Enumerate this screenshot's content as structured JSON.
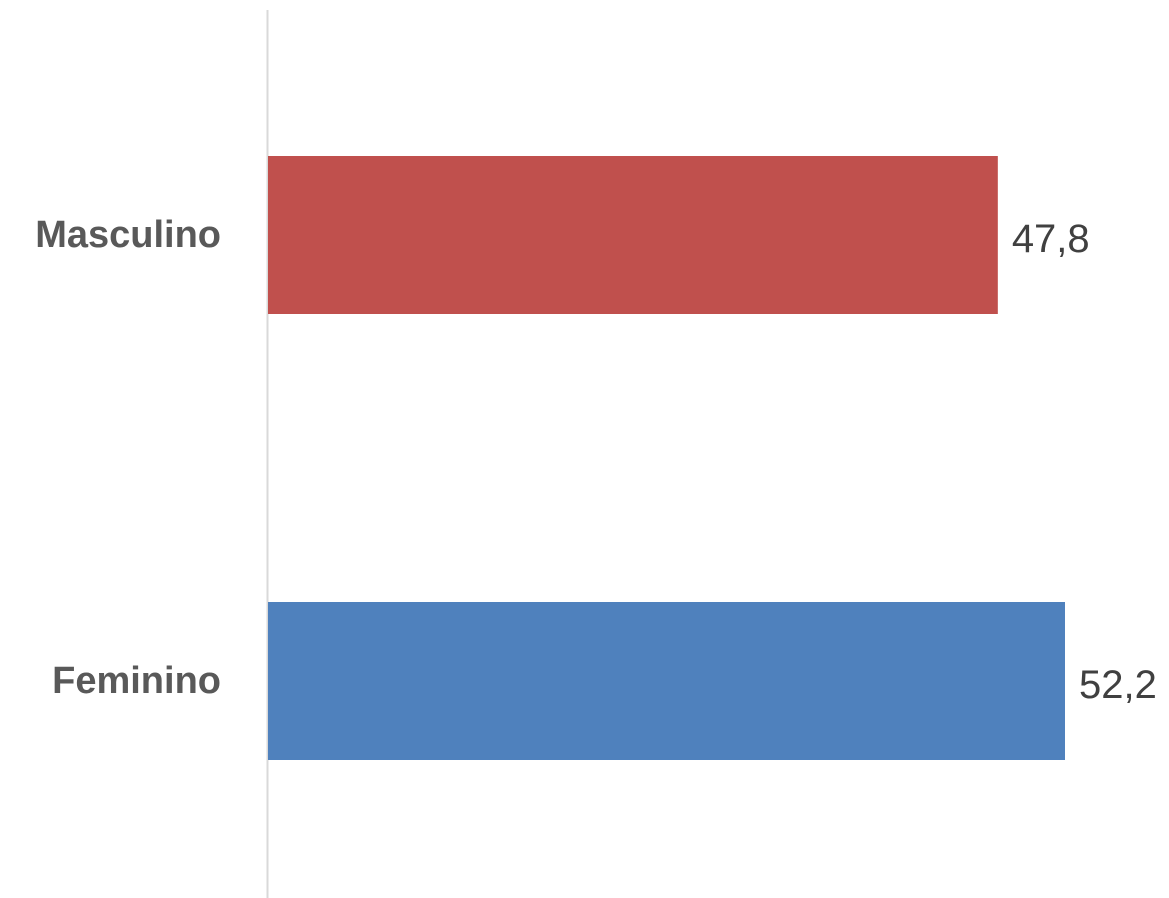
{
  "chart_data": {
    "type": "bar",
    "orientation": "horizontal",
    "title": "",
    "xlabel": "",
    "ylabel": "",
    "categories": [
      "Masculino",
      "Feminino"
    ],
    "values": [
      47.8,
      52.2
    ],
    "value_labels": [
      "47,8",
      "52,2"
    ],
    "colors": [
      "#c0504d",
      "#4f81bd"
    ],
    "axis_color": "#d9d9d9",
    "xlim": [
      0,
      52.2
    ],
    "grid": false,
    "legend": "none"
  }
}
